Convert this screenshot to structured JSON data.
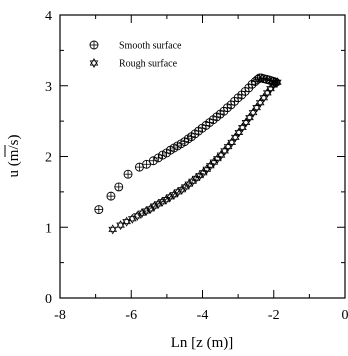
{
  "chart_data": {
    "type": "scatter",
    "title": "",
    "xlabel": "Ln [z (m)]",
    "ylabel": "u (m/s)",
    "xlim": [
      -8,
      0
    ],
    "ylim": [
      0,
      4
    ],
    "xticks": [
      "-8",
      "-6",
      "-4",
      "-2",
      "0"
    ],
    "yticks": [
      "0",
      "1",
      "2",
      "3",
      "4"
    ],
    "legend_position": "top-left",
    "grid": false,
    "series": [
      {
        "name": "Smooth surface",
        "marker": "circle-plus",
        "x": [
          -6.91,
          -6.57,
          -6.35,
          -6.09,
          -5.77,
          -5.57,
          -5.38,
          -5.24,
          -5.12,
          -5.01,
          -4.9,
          -4.8,
          -4.7,
          -4.6,
          -4.5,
          -4.4,
          -4.31,
          -4.21,
          -4.11,
          -4.01,
          -3.9,
          -3.8,
          -3.7,
          -3.6,
          -3.5,
          -3.4,
          -3.3,
          -3.2,
          -3.1,
          -3.0,
          -2.9,
          -2.8,
          -2.7,
          -2.61,
          -2.52,
          -2.45,
          -2.4,
          -2.35,
          -2.28,
          -2.2,
          -2.12,
          -2.06,
          -2.0,
          -1.94
        ],
        "y": [
          1.25,
          1.44,
          1.57,
          1.75,
          1.85,
          1.89,
          1.94,
          1.98,
          2.02,
          2.05,
          2.09,
          2.12,
          2.15,
          2.18,
          2.21,
          2.25,
          2.28,
          2.32,
          2.36,
          2.4,
          2.44,
          2.48,
          2.52,
          2.56,
          2.6,
          2.64,
          2.69,
          2.73,
          2.78,
          2.83,
          2.87,
          2.92,
          2.97,
          3.02,
          3.06,
          3.09,
          3.11,
          3.11,
          3.1,
          3.09,
          3.08,
          3.07,
          3.06,
          3.05
        ]
      },
      {
        "name": "Rough surface",
        "marker": "star",
        "x": [
          -6.52,
          -6.3,
          -6.13,
          -5.97,
          -5.83,
          -5.7,
          -5.58,
          -5.46,
          -5.35,
          -5.24,
          -5.13,
          -5.02,
          -4.91,
          -4.8,
          -4.69,
          -4.58,
          -4.48,
          -4.38,
          -4.28,
          -4.18,
          -4.08,
          -3.98,
          -3.88,
          -3.78,
          -3.68,
          -3.58,
          -3.48,
          -3.38,
          -3.28,
          -3.18,
          -3.08,
          -2.98,
          -2.88,
          -2.78,
          -2.68,
          -2.58,
          -2.48,
          -2.38,
          -2.28,
          -2.18,
          -2.09,
          -2.01,
          -1.95,
          -1.9
        ],
        "y": [
          0.97,
          1.03,
          1.08,
          1.12,
          1.16,
          1.2,
          1.23,
          1.26,
          1.3,
          1.33,
          1.36,
          1.39,
          1.43,
          1.46,
          1.5,
          1.53,
          1.57,
          1.61,
          1.65,
          1.69,
          1.73,
          1.77,
          1.82,
          1.87,
          1.92,
          1.97,
          2.02,
          2.08,
          2.14,
          2.2,
          2.27,
          2.34,
          2.41,
          2.48,
          2.55,
          2.62,
          2.69,
          2.76,
          2.83,
          2.9,
          2.96,
          3.01,
          3.04,
          3.05
        ]
      }
    ]
  }
}
